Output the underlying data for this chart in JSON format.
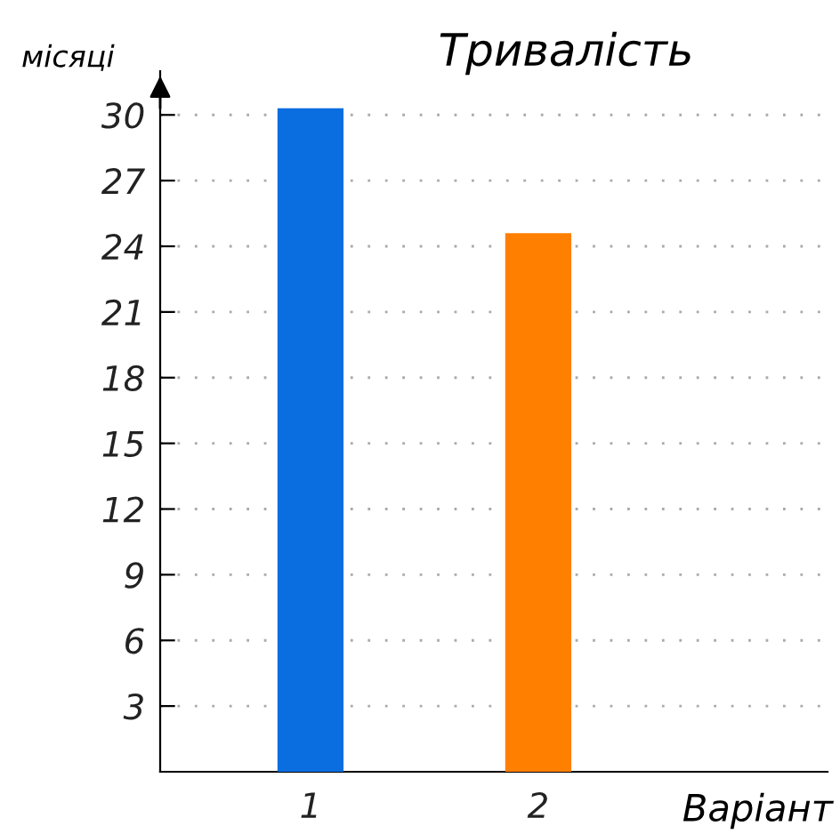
{
  "chart_data": {
    "type": "bar",
    "title": "Тривалість",
    "xlabel": "Варіант",
    "ylabel": "місяці",
    "categories": [
      "1",
      "2"
    ],
    "values": [
      30.3,
      24.6
    ],
    "colors": [
      "#0a6ee0",
      "#ff7f00"
    ],
    "ylim": [
      0,
      32
    ],
    "yticks": [
      3,
      6,
      9,
      12,
      15,
      18,
      21,
      24,
      27,
      30
    ],
    "grid": "y"
  }
}
